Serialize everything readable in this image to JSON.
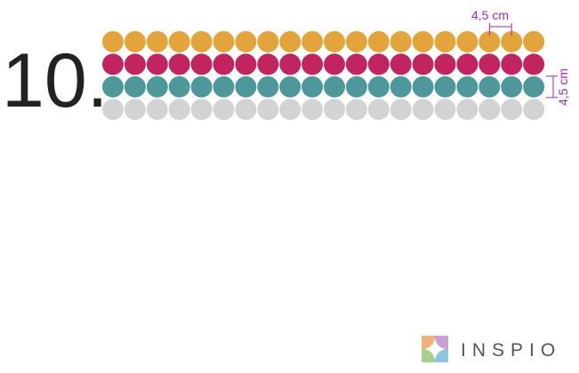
{
  "label": "10.",
  "dot_rows": [
    {
      "color": "#e3a53b",
      "count": 20
    },
    {
      "color": "#c1245e",
      "count": 20
    },
    {
      "color": "#4e979a",
      "count": 20
    },
    {
      "color": "#d3d3d3",
      "count": 20
    }
  ],
  "dimension_color": "#a424c4",
  "width_label": "4,5 cm",
  "height_label": "4,5 cm",
  "brand": "INSPIO"
}
